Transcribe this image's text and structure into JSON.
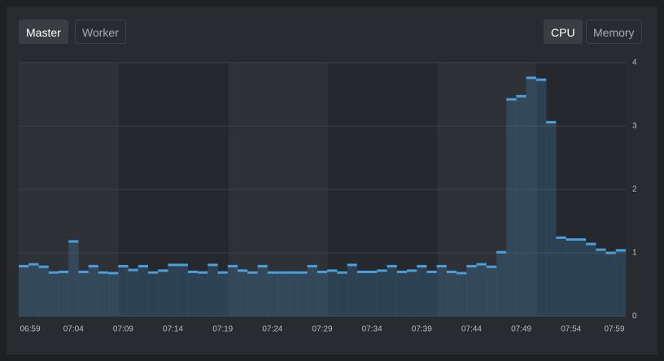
{
  "node_tabs": [
    "Master",
    "Worker"
  ],
  "metric_tabs": [
    "CPU",
    "Memory"
  ],
  "chart_data": {
    "type": "step-area",
    "categories": [
      "06:59",
      null,
      null,
      null,
      null,
      "07:04",
      null,
      null,
      null,
      null,
      "07:09",
      null,
      null,
      null,
      null,
      "07:14",
      null,
      null,
      null,
      null,
      "07:19",
      null,
      null,
      null,
      null,
      "07:24",
      null,
      null,
      null,
      null,
      "07:29",
      null,
      null,
      null,
      null,
      "07:34",
      null,
      null,
      null,
      null,
      "07:39",
      null,
      null,
      null,
      null,
      "07:44",
      null,
      null,
      null,
      null,
      "07:49",
      null,
      null,
      null,
      null,
      "07:54",
      null,
      null,
      null,
      null,
      "07:59"
    ],
    "series": [
      {
        "color": "#4a9fdc",
        "values": [
          0.79,
          0.82,
          0.78,
          0.69,
          0.7,
          1.18,
          0.7,
          0.79,
          0.69,
          0.68,
          0.79,
          0.73,
          0.79,
          0.69,
          0.72,
          0.81,
          0.81,
          0.7,
          0.69,
          0.81,
          0.69,
          0.79,
          0.72,
          0.69,
          0.79,
          0.69,
          0.69,
          0.69,
          0.69,
          0.79,
          0.7,
          0.72,
          0.69,
          0.81,
          0.7,
          0.7,
          0.72,
          0.79,
          0.7,
          0.72,
          0.79,
          0.7,
          0.79,
          0.7,
          0.68,
          0.79,
          0.82,
          0.78,
          1.01,
          3.42,
          3.47,
          3.76,
          3.73,
          3.06,
          1.24,
          1.21,
          1.21,
          1.14,
          1.05,
          1.0,
          1.04
        ]
      }
    ],
    "ylim": [
      0,
      4
    ],
    "yticks": [
      0,
      1,
      2,
      3,
      4
    ],
    "grid": true
  }
}
